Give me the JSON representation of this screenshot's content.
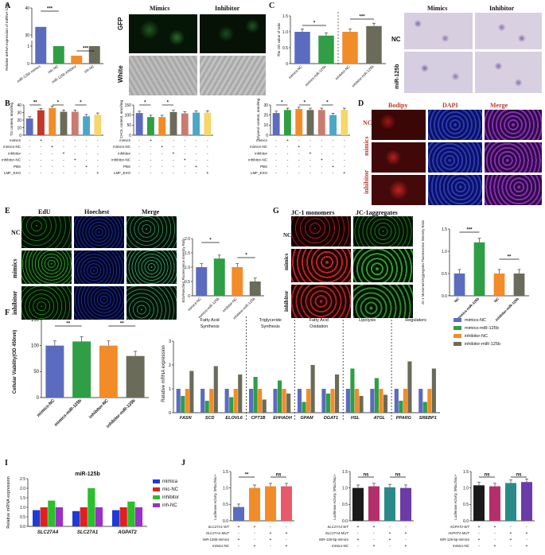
{
  "panels": {
    "A": {
      "label": "A",
      "col_mimics": "Mimics",
      "col_inhibitor": "Inhibitor",
      "row_gfp": "GFP",
      "row_white": "White",
      "chart_ylabel": "Relative mRNA expression of miRNA-125b",
      "categories": [
        "miR-125b mimics",
        "mic-NC",
        "miR-125b inhibitor",
        "inh-NC"
      ],
      "sig": [
        "***",
        "***"
      ]
    },
    "B": {
      "label": "B"
    },
    "C": {
      "label": "C",
      "chart_ylabel": "The OD value of ratio",
      "sig": [
        "*",
        "***"
      ],
      "col_mimics": "Mimics",
      "col_inhibitor": "Inhibitor",
      "row_nc": "NC",
      "row_mir": "miR-125b"
    },
    "D": {
      "label": "D",
      "col1": "Bodipy",
      "col2": "DAPI",
      "col3": "Merge",
      "rows": [
        "NC",
        "mimics",
        "inhibitor"
      ]
    },
    "E": {
      "label": "E",
      "col1": "EdU",
      "col2": "Hoechest",
      "col3": "Merge",
      "rows": [
        "NC",
        "mimics",
        "inhibitor"
      ],
      "chart_ylabel": "EdU/Hoechest Fluorescence Intensity Ratio",
      "sig": [
        "*",
        "*"
      ]
    },
    "G": {
      "label": "G",
      "col1": "JC-1 monomers",
      "col2": "JC-1aggregates",
      "chart_ylabel": "JC-1 Monomers/Aggregates Fluorescence Intensity Ratio",
      "sig": [
        "***",
        "**"
      ]
    },
    "F": {
      "label": "F",
      "chart_ylabel": "Cellular Viability(OD 450nm)",
      "sig": [
        "**",
        "**"
      ]
    },
    "H": {
      "label": "H",
      "chart_ylabel": "Relative mRNA expression",
      "groups": [
        "Fatty Acid Synthesis",
        "Triglyceride Synthesis",
        "Fatty Acid Oxidation",
        "Lipolysis",
        "Regulators"
      ]
    },
    "I": {
      "label": "I",
      "title": "miR-125b",
      "chart_ylabel": "Relative mRNA expression"
    },
    "J": {
      "label": "J",
      "ylabel": "Luciferase Activity, hRluc/hluc+"
    }
  },
  "chart_data": [
    {
      "id": "A",
      "type": "bar",
      "categories": [
        "miR-125b mimics",
        "mic-NC",
        "miR-125b inhibitor",
        "inh-NC"
      ],
      "values": [
        33,
        1.0,
        0.45,
        1.0
      ],
      "ylim": [
        0,
        40
      ],
      "yticks": [
        "0",
        "1",
        "30",
        "40"
      ],
      "broken_axis": true,
      "colors": [
        "#5b6bbf",
        "#2f9e44",
        "#f28c28",
        "#6b6b5a"
      ]
    },
    {
      "id": "B1",
      "type": "bar",
      "ylabel": "TG content, nmol/mg",
      "values": [
        22,
        33,
        36,
        31,
        31,
        25,
        27
      ],
      "ylim": [
        0,
        40
      ],
      "yticks": [
        "0",
        "10",
        "20",
        "30",
        "40"
      ],
      "sig": [
        "**",
        "*",
        "*"
      ],
      "colors": [
        "#5b6bbf",
        "#c0392b",
        "#f28c28",
        "#6b6b5a",
        "#c97b72",
        "#4aa8c7",
        "#f5d76e"
      ]
    },
    {
      "id": "B2",
      "type": "bar",
      "ylabel": "CHOL content, nmol/mg",
      "values": [
        110,
        90,
        90,
        115,
        108,
        112,
        112
      ],
      "ylim": [
        0,
        150
      ],
      "yticks": [
        "0",
        "50",
        "100",
        "150"
      ],
      "sig": [
        "*",
        "*"
      ],
      "colors": [
        "#5b6bbf",
        "#2f9e44",
        "#f28c28",
        "#6b6b5a",
        "#c97b72",
        "#4aa8c7",
        "#f5d76e"
      ]
    },
    {
      "id": "B3",
      "type": "bar",
      "ylabel": "Glycerol content, nmol/mg",
      "values": [
        22,
        25,
        26,
        25,
        25,
        20,
        25
      ],
      "ylim": [
        0,
        30
      ],
      "yticks": [
        "0",
        "10",
        "20",
        "30"
      ],
      "sig": [
        "*",
        "*",
        "*"
      ],
      "colors": [
        "#5b6bbf",
        "#2f9e44",
        "#f28c28",
        "#6b6b5a",
        "#c97b72",
        "#4aa8c7",
        "#f5d76e"
      ]
    },
    {
      "id": "C",
      "type": "bar",
      "categories": [
        "mimics-NC",
        "mimics-miR-125b",
        "inhibitor-NC",
        "inhibitor-miR-125b"
      ],
      "values": [
        1.0,
        0.88,
        1.0,
        1.18
      ],
      "ylim": [
        0,
        1.5
      ],
      "yticks": [
        "0",
        "0.5",
        "1.0",
        "1.5"
      ],
      "colors": [
        "#5b6bbf",
        "#2f9e44",
        "#f28c28",
        "#6b6b5a"
      ]
    },
    {
      "id": "E",
      "type": "bar",
      "categories": [
        "mimics-NC",
        "mimics-miR-125b",
        "inhibitor-NC",
        "inhibitor-miR-125b"
      ],
      "values": [
        1.0,
        1.3,
        1.0,
        0.5
      ],
      "ylim": [
        0,
        2.0
      ],
      "yticks": [
        "0",
        "0.5",
        "1.0",
        "1.5",
        "2.0"
      ],
      "colors": [
        "#5b6bbf",
        "#2f9e44",
        "#f28c28",
        "#6b6b5a"
      ]
    },
    {
      "id": "G",
      "type": "bar",
      "categories": [
        "NC",
        "mimics-miR-125b",
        "NC",
        "inhibitor-miR-125b"
      ],
      "values": [
        0.5,
        1.2,
        0.5,
        0.5
      ],
      "ylim": [
        0,
        1.5
      ],
      "yticks": [
        "0.0",
        "0.5",
        "1.0",
        "1.5"
      ],
      "colors": [
        "#5b6bbf",
        "#2f9e44",
        "#f28c28",
        "#6b6b5a"
      ]
    },
    {
      "id": "F",
      "type": "bar",
      "categories": [
        "mimics-NC",
        "mimics-miR-125b",
        "inhibitor-NC",
        "inhibitor-miR-125b"
      ],
      "values": [
        100,
        108,
        100,
        80
      ],
      "ylim": [
        0,
        150
      ],
      "yticks": [
        "0",
        "50",
        "100",
        "150"
      ],
      "colors": [
        "#5b6bbf",
        "#2f9e44",
        "#f28c28",
        "#6b6b5a"
      ]
    },
    {
      "id": "H",
      "type": "bar",
      "categories": [
        "FASN",
        "SCD",
        "ELOVL6",
        "CPT1B",
        "EHHADH",
        "GPAM",
        "DGAT1",
        "HSL",
        "ATGL",
        "PPARG",
        "SREBP1"
      ],
      "series": [
        {
          "name": "mimics-NC",
          "color": "#5b6bbf",
          "values": [
            1,
            1,
            1,
            1,
            1,
            1,
            1,
            1,
            1,
            1,
            1
          ]
        },
        {
          "name": "mimics-miR-125b",
          "color": "#2f9e44",
          "values": [
            0.7,
            0.5,
            0.65,
            1.5,
            1.35,
            0.45,
            0.8,
            1.85,
            1.45,
            0.5,
            0.45
          ]
        },
        {
          "name": "inhibitor-NC",
          "color": "#f28c28",
          "values": [
            1,
            1,
            1,
            1,
            1,
            1,
            1,
            1,
            1,
            1,
            1
          ]
        },
        {
          "name": "inhibitor-miR-125b",
          "color": "#6b6b5a",
          "values": [
            1.75,
            1.95,
            1.6,
            0.55,
            0.8,
            2.0,
            1.6,
            0.7,
            0.75,
            2.15,
            1.85
          ]
        }
      ],
      "ylim": [
        0,
        3
      ],
      "yticks": [
        "0",
        "1",
        "2",
        "3"
      ]
    },
    {
      "id": "I",
      "type": "bar",
      "title": "miR-125b",
      "categories": [
        "SLC27A4",
        "SLC27A1",
        "AGPAT2"
      ],
      "series": [
        {
          "name": "mimica",
          "color": "#1f3bd6",
          "values": [
            0.85,
            0.8,
            0.85
          ]
        },
        {
          "name": "mic-NC",
          "color": "#e02020",
          "values": [
            1,
            1,
            1
          ]
        },
        {
          "name": "inhibitor",
          "color": "#2bbf2b",
          "values": [
            1.35,
            2.0,
            1.3
          ]
        },
        {
          "name": "inh-NC",
          "color": "#9b30c9",
          "values": [
            1,
            1,
            1
          ]
        }
      ],
      "ylim": [
        0,
        2.5
      ],
      "yticks": [
        "0.0",
        "0.5",
        "1.0",
        "1.5",
        "2.0",
        "2.5"
      ]
    },
    {
      "id": "J1",
      "type": "bar",
      "values": [
        0.42,
        1.0,
        1.05,
        1.05
      ],
      "ylim": [
        0,
        1.5
      ],
      "yticks": [
        "0.0",
        "0.5",
        "1.0",
        "1.5"
      ],
      "colors": [
        "#5b6bbf",
        "#f28c28",
        "#f28c28",
        "#e85a6a"
      ],
      "sig": [
        "**",
        "ns"
      ],
      "table_rows": [
        {
          "label": "SLC27A1-WT",
          "cells": [
            "+",
            "+",
            "-",
            "-"
          ]
        },
        {
          "label": "SLC27A1-MUT",
          "cells": [
            "-",
            "-",
            "+",
            "+"
          ]
        },
        {
          "label": "miR-125b-mimics",
          "cells": [
            "+",
            "-",
            "+",
            "-"
          ]
        },
        {
          "label": "mimics-NC",
          "cells": [
            "-",
            "+",
            "-",
            "+"
          ]
        }
      ]
    },
    {
      "id": "J2",
      "type": "bar",
      "values": [
        1.0,
        1.05,
        1.02,
        1.0
      ],
      "ylim": [
        0,
        1.5
      ],
      "yticks": [
        "0.0",
        "0.5",
        "1.0",
        "1.5"
      ],
      "colors": [
        "#1a1a1a",
        "#b5306a",
        "#2a8a8a",
        "#6b3ca8"
      ],
      "sig": [
        "ns",
        "ns"
      ],
      "table_rows": [
        {
          "label": "SLC27A4-WT",
          "cells": [
            "+",
            "+",
            "-",
            "-"
          ]
        },
        {
          "label": "SLC27A4-MUT",
          "cells": [
            "-",
            "-",
            "+",
            "+"
          ]
        },
        {
          "label": "miR-126-5p-mimics",
          "cells": [
            "+",
            "-",
            "+",
            "-"
          ]
        },
        {
          "label": "mimics-NC",
          "cells": [
            "-",
            "+",
            "-",
            "+"
          ]
        }
      ]
    },
    {
      "id": "J3",
      "type": "bar",
      "values": [
        1.08,
        1.05,
        1.15,
        1.18
      ],
      "ylim": [
        0,
        1.5
      ],
      "yticks": [
        "0.0",
        "0.5",
        "1.0",
        "1.5"
      ],
      "colors": [
        "#1a1a1a",
        "#b5306a",
        "#2a8a8a",
        "#6b3ca8"
      ],
      "sig": [
        "ns",
        "ns"
      ],
      "table_rows": [
        {
          "label": "AGPAT2-WT",
          "cells": [
            "+",
            "+",
            "-",
            "-"
          ]
        },
        {
          "label": "AGPAT2-MUT",
          "cells": [
            "-",
            "-",
            "+",
            "+"
          ]
        },
        {
          "label": "miR-126-5p-mimics",
          "cells": [
            "+",
            "-",
            "+",
            "-"
          ]
        },
        {
          "label": "mimics-NC",
          "cells": [
            "-",
            "+",
            "-",
            "+"
          ]
        }
      ]
    }
  ],
  "b_table": {
    "rows": [
      "mimics",
      "mimics-NC",
      "inhibitor",
      "inhibitor-NC",
      "PBS",
      "LMF_EXO"
    ],
    "cells": [
      [
        "-",
        "+",
        "-",
        "-",
        "-",
        "-",
        "-"
      ],
      [
        "-",
        "-",
        "+",
        "-",
        "-",
        "-",
        "-"
      ],
      [
        "-",
        "-",
        "-",
        "+",
        "-",
        "-",
        "-"
      ],
      [
        "-",
        "-",
        "-",
        "-",
        "+",
        "-",
        "-"
      ],
      [
        "-",
        "-",
        "-",
        "-",
        "-",
        "+",
        "-"
      ],
      [
        "-",
        "-",
        "-",
        "-",
        "-",
        "-",
        "+"
      ]
    ]
  },
  "h_legend": [
    "mimics-NC",
    "mimics-miR-125b",
    "inhibitor-NC",
    "inhibitor-miR-125b"
  ],
  "i_legend": [
    "mimica",
    "mic-NC",
    "inhibitor",
    "inh-NC"
  ]
}
